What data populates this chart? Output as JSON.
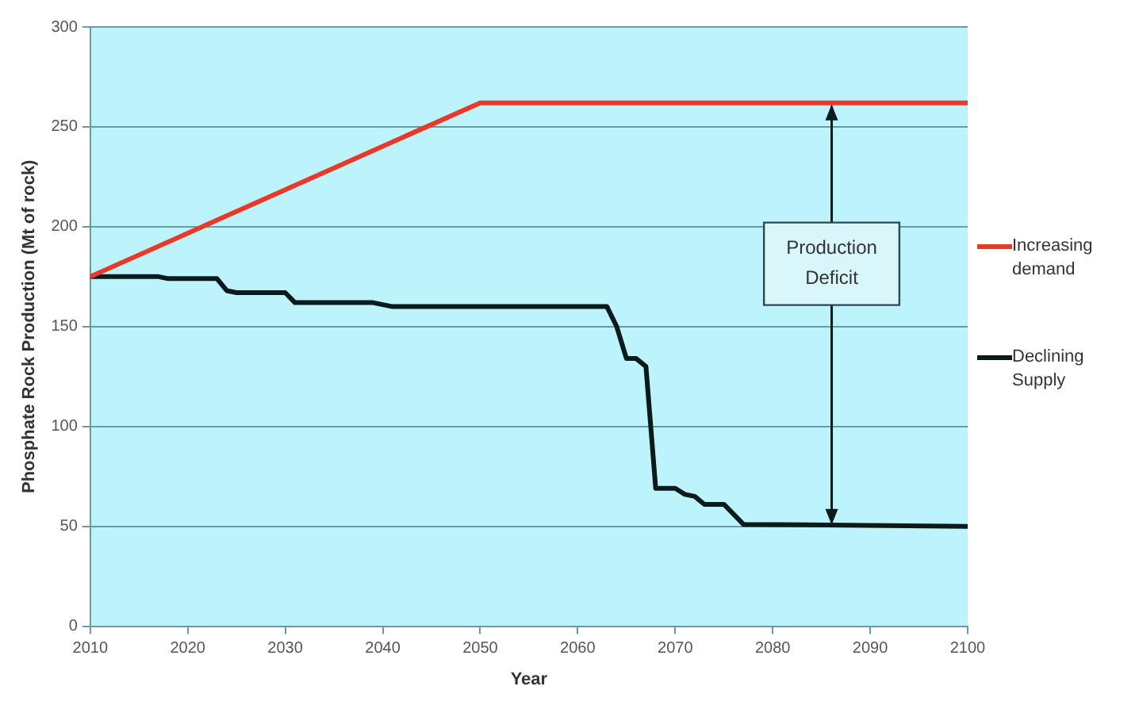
{
  "chart_data": {
    "type": "line",
    "xlabel": "Year",
    "ylabel": "Phosphate Rock Production (Mt of rock)",
    "xlim": [
      2010,
      2100
    ],
    "xticks": [
      2010,
      2020,
      2030,
      2040,
      2050,
      2060,
      2070,
      2080,
      2090,
      2100
    ],
    "ylim": [
      0,
      300
    ],
    "yticks": [
      0,
      50,
      100,
      150,
      200,
      250,
      300
    ],
    "grid": "y",
    "legend": "right",
    "marker": "none",
    "line_style": "solid",
    "series": [
      {
        "name": "Increasing demand",
        "color": "#e8392b",
        "x": [
          2010,
          2050,
          2100
        ],
        "values": [
          175,
          262,
          262
        ]
      },
      {
        "name": "Declining Supply",
        "color": "#0d1a1c",
        "x": [
          2010,
          2017,
          2018,
          2023,
          2024,
          2025,
          2030,
          2031,
          2039,
          2041,
          2063,
          2064,
          2065,
          2066,
          2067,
          2068,
          2070,
          2071,
          2072,
          2073,
          2075,
          2077,
          2100
        ],
        "values": [
          175,
          175,
          174,
          174,
          168,
          167,
          167,
          162,
          162,
          160,
          160,
          150,
          134,
          134,
          130,
          69,
          69,
          66,
          65,
          61,
          61,
          51,
          50
        ]
      }
    ],
    "annotations": [
      "Production Deficit"
    ]
  }
}
